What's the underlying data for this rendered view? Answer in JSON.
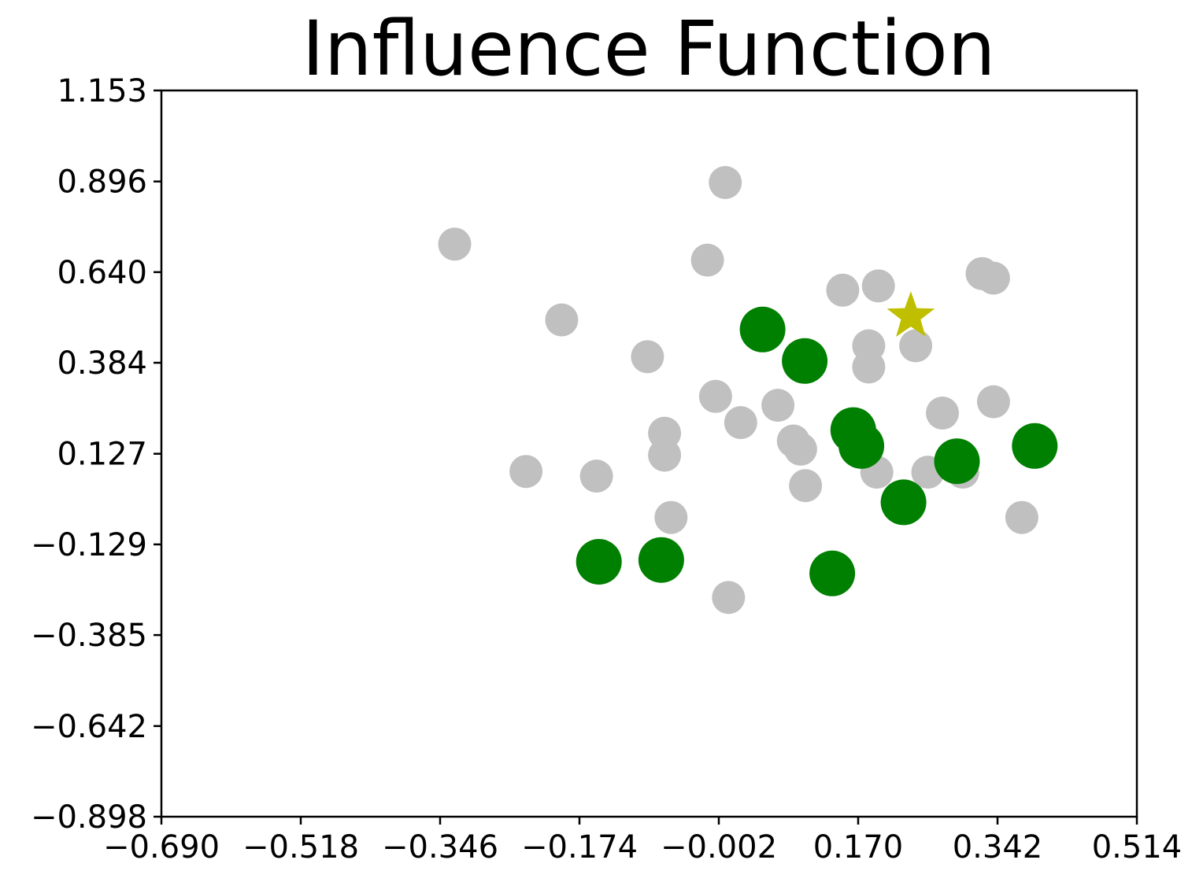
{
  "chart_data": {
    "type": "scatter",
    "title": "Influence Function",
    "xlabel": "",
    "ylabel": "",
    "xlim": [
      -0.69,
      0.514
    ],
    "ylim": [
      -0.898,
      1.153
    ],
    "xticks": [
      "−0.690",
      "−0.518",
      "−0.346",
      "−0.174",
      "−0.002",
      "0.170",
      "0.342",
      "0.514"
    ],
    "xtick_values": [
      -0.69,
      -0.518,
      -0.346,
      -0.174,
      -0.002,
      0.17,
      0.342,
      0.514
    ],
    "yticks": [
      "1.153",
      "0.896",
      "0.640",
      "0.384",
      "0.127",
      "−0.129",
      "−0.385",
      "−0.642",
      "−0.898"
    ],
    "ytick_values": [
      1.153,
      0.896,
      0.64,
      0.384,
      0.127,
      -0.129,
      -0.385,
      -0.642,
      -0.898
    ],
    "grid": false,
    "colors": {
      "gray": "#c0c0c0",
      "green": "#008000",
      "star": "#bfbf00"
    },
    "series": [
      {
        "color": "gray",
        "marker": "circle",
        "points": [
          [
            0.006,
            0.893
          ],
          [
            -0.328,
            0.719
          ],
          [
            -0.016,
            0.674
          ],
          [
            0.323,
            0.636
          ],
          [
            0.337,
            0.623
          ],
          [
            0.151,
            0.589
          ],
          [
            0.195,
            0.601
          ],
          [
            -0.196,
            0.505
          ],
          [
            0.183,
            0.432
          ],
          [
            0.241,
            0.432
          ],
          [
            -0.09,
            0.401
          ],
          [
            0.183,
            0.372
          ],
          [
            -0.006,
            0.289
          ],
          [
            0.071,
            0.264
          ],
          [
            0.337,
            0.274
          ],
          [
            0.274,
            0.242
          ],
          [
            0.025,
            0.215
          ],
          [
            -0.069,
            0.185
          ],
          [
            0.09,
            0.163
          ],
          [
            0.099,
            0.14
          ],
          [
            -0.069,
            0.123
          ],
          [
            -0.24,
            0.077
          ],
          [
            -0.153,
            0.064
          ],
          [
            0.193,
            0.075
          ],
          [
            0.256,
            0.075
          ],
          [
            0.299,
            0.075
          ],
          [
            0.105,
            0.037
          ],
          [
            -0.061,
            -0.053
          ],
          [
            0.372,
            -0.053
          ],
          [
            0.01,
            -0.279
          ]
        ]
      },
      {
        "color": "green",
        "marker": "circle",
        "points": [
          [
            0.052,
            0.478
          ],
          [
            0.104,
            0.389
          ],
          [
            0.164,
            0.194
          ],
          [
            0.174,
            0.149
          ],
          [
            0.292,
            0.106
          ],
          [
            0.388,
            0.149
          ],
          [
            0.226,
            -0.01
          ],
          [
            -0.15,
            -0.178
          ],
          [
            -0.073,
            -0.173
          ],
          [
            0.138,
            -0.211
          ]
        ]
      },
      {
        "color": "star",
        "marker": "star",
        "points": [
          [
            0.235,
            0.515
          ]
        ]
      }
    ]
  }
}
